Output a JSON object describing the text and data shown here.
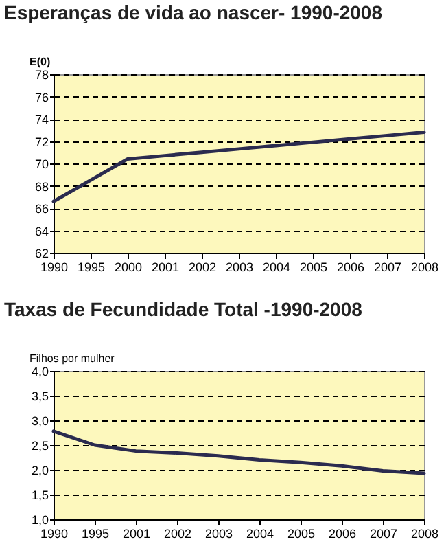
{
  "chart_data": [
    {
      "type": "line",
      "title": "Esperanças de vida ao nascer- 1990-2008",
      "ylabel": "E(0)",
      "categories": [
        "1990",
        "1995",
        "2000",
        "2001",
        "2002",
        "2003",
        "2004",
        "2005",
        "2006",
        "2007",
        "2008"
      ],
      "series": [
        {
          "color": "#2b2b4f",
          "values": [
            66.6,
            68.5,
            70.4,
            70.7,
            71.0,
            71.3,
            71.6,
            71.9,
            72.2,
            72.5,
            72.8
          ]
        }
      ],
      "ylim": [
        62,
        78
      ],
      "yticks": [
        62,
        64,
        66,
        68,
        70,
        72,
        74,
        76,
        78
      ],
      "grid": "y",
      "legend": false
    },
    {
      "type": "line",
      "title": "Taxas de Fecundidade Total -1990-2008",
      "ylabel": "Filhos por mulher",
      "categories": [
        "1990",
        "1995",
        "2001",
        "2002",
        "2003",
        "2004",
        "2005",
        "2006",
        "2007",
        "2008"
      ],
      "series": [
        {
          "color": "#2b2b4f",
          "values": [
            2.78,
            2.5,
            2.38,
            2.34,
            2.28,
            2.2,
            2.15,
            2.08,
            1.98,
            1.93
          ]
        }
      ],
      "ylim": [
        1.0,
        4.0
      ],
      "yticks": [
        {
          "value": 1.0,
          "label": "1,0"
        },
        {
          "value": 1.5,
          "label": "1,5"
        },
        {
          "value": 2.0,
          "label": "2,0"
        },
        {
          "value": 2.5,
          "label": "2,5"
        },
        {
          "value": 3.0,
          "label": "3,0"
        },
        {
          "value": 3.5,
          "label": "3,5"
        },
        {
          "value": 4.0,
          "label": "4,0"
        }
      ],
      "grid": "y",
      "legend": false
    }
  ]
}
